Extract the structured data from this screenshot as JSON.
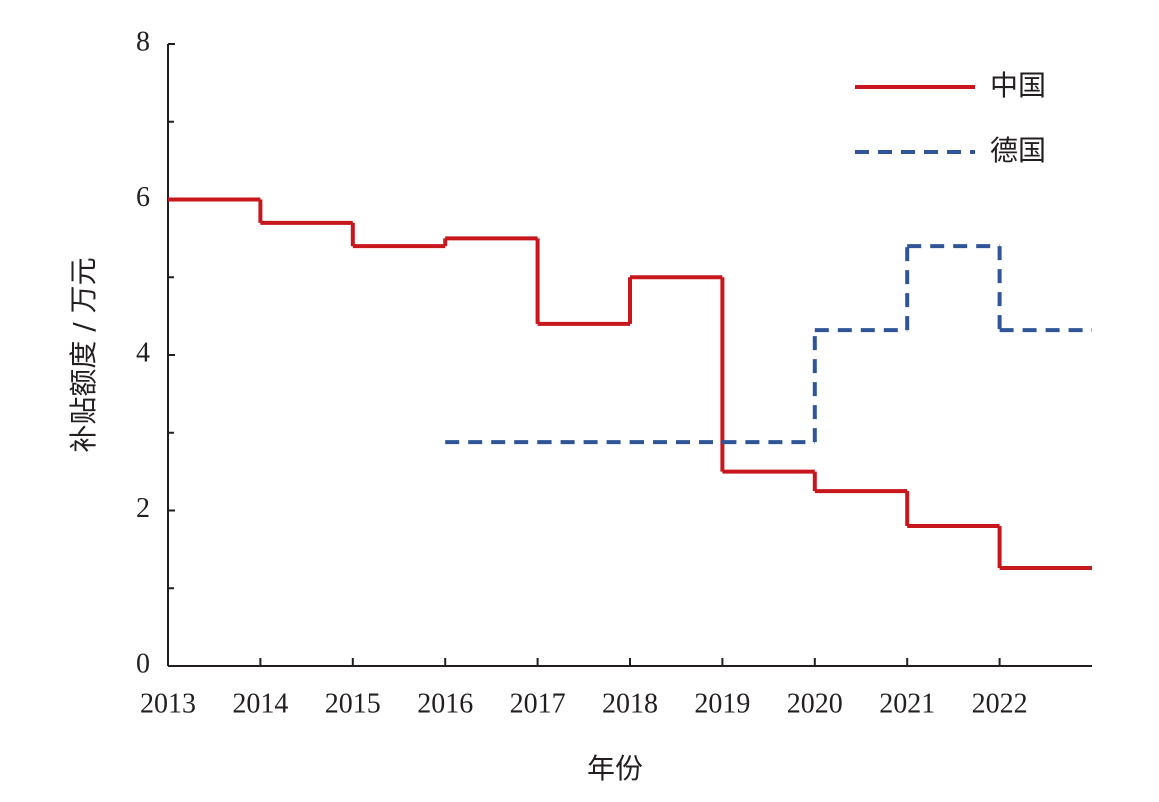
{
  "chart_data": {
    "type": "line",
    "step": "post",
    "x_label": "年份",
    "y_label": "补贴额度 / 万元",
    "x": [
      2013,
      2014,
      2015,
      2016,
      2017,
      2018,
      2019,
      2020,
      2021,
      2022
    ],
    "series": [
      {
        "name": "中国",
        "color": "#c8161d",
        "dash": false,
        "values": [
          6,
          5.7,
          5.4,
          5.5,
          4.4,
          5.0,
          2.5,
          2.25,
          1.8,
          1.26
        ]
      },
      {
        "name": "德国",
        "color": "#2f5597",
        "dash": true,
        "values": [
          null,
          null,
          null,
          2.88,
          2.88,
          2.88,
          2.88,
          4.32,
          5.4,
          4.32
        ]
      }
    ],
    "xlim": [
      2013,
      2023
    ],
    "xticks": [
      2013,
      2014,
      2015,
      2016,
      2017,
      2018,
      2019,
      2020,
      2021,
      2022
    ],
    "ylim": [
      0,
      8
    ],
    "yticks": [
      0,
      2,
      4,
      6,
      8
    ],
    "yminorticks": [
      1,
      3,
      5,
      7
    ],
    "grid": false,
    "legend": "upper right"
  }
}
